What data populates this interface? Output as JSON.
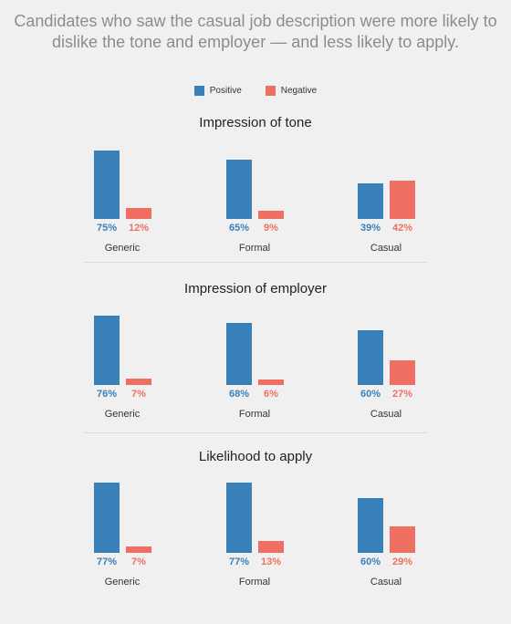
{
  "headline": "Candidates who saw the casual job description were more likely to dislike the tone and employer — and less likely to apply.",
  "colors": {
    "positive": "#3a80b9",
    "negative": "#ef6f62"
  },
  "legend": [
    {
      "label": "Positive",
      "color": "#3a80b9"
    },
    {
      "label": "Negative",
      "color": "#ef6f62"
    }
  ],
  "chart_data": [
    {
      "type": "bar",
      "title": "Impression of tone",
      "categories": [
        "Generic",
        "Formal",
        "Casual"
      ],
      "series": [
        {
          "name": "Positive",
          "values": [
            75,
            65,
            39
          ]
        },
        {
          "name": "Negative",
          "values": [
            12,
            9,
            42
          ]
        }
      ],
      "value_labels": {
        "Positive": [
          "75%",
          "65%",
          "39%"
        ],
        "Negative": [
          "12%",
          "9%",
          "42%"
        ]
      },
      "ylim": [
        0,
        100
      ]
    },
    {
      "type": "bar",
      "title": "Impression of employer",
      "categories": [
        "Generic",
        "Formal",
        "Casual"
      ],
      "series": [
        {
          "name": "Positive",
          "values": [
            76,
            68,
            60
          ]
        },
        {
          "name": "Negative",
          "values": [
            7,
            6,
            27
          ]
        }
      ],
      "value_labels": {
        "Positive": [
          "76%",
          "68%",
          "60%"
        ],
        "Negative": [
          "7%",
          "6%",
          "27%"
        ]
      },
      "ylim": [
        0,
        100
      ]
    },
    {
      "type": "bar",
      "title": "Likelihood to apply",
      "categories": [
        "Generic",
        "Formal",
        "Casual"
      ],
      "series": [
        {
          "name": "Positive",
          "values": [
            77,
            77,
            60
          ]
        },
        {
          "name": "Negative",
          "values": [
            7,
            13,
            29
          ]
        }
      ],
      "value_labels": {
        "Positive": [
          "77%",
          "77%",
          "60%"
        ],
        "Negative": [
          "7%",
          "13%",
          "29%"
        ]
      },
      "ylim": [
        0,
        100
      ]
    }
  ]
}
